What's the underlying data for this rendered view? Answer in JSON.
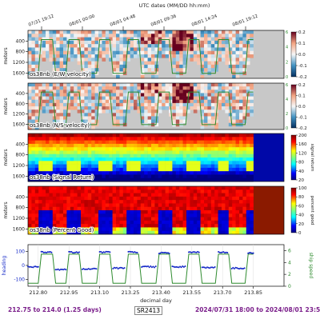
{
  "top_axis": {
    "label": "UTC dates (MM/DD hh:mm)",
    "ticks": [
      "07/31 19:12",
      "08/01 00:00",
      "08/01 04:48",
      "08/01 09:36",
      "08/01 14:24",
      "08/01 19:12"
    ]
  },
  "footer": {
    "left": "212.75 to 214.0 (1.25 days)",
    "center": "SR2413",
    "right": "2024/07/31 18:00 to 2024/08/01 23:55"
  },
  "colors": {
    "footer_text": "#7a1e8a",
    "speed_line": "#2e8b2e",
    "heading_points": "#1428c8",
    "nodata": "#c8c8c8"
  },
  "chart_data": [
    {
      "type": "heatmap",
      "panel_label": "os38nb (E/W velocity)",
      "ylabel": "meters",
      "yticks": [
        400,
        800,
        1200,
        1600
      ],
      "colorbar_ticks": [
        "0.2",
        "0.1",
        "0.0",
        "-0.1",
        "-0.2"
      ],
      "colorbar_range": [
        -0.2,
        0.2
      ],
      "colormap": "RdBu_r",
      "speed_axis_ticks": [
        "6",
        "4",
        "2",
        "0"
      ]
    },
    {
      "type": "heatmap",
      "panel_label": "os38nb (N/S velocity)",
      "ylabel": "meters",
      "yticks": [
        400,
        800,
        1200,
        1600
      ],
      "colorbar_ticks": [
        "0.2",
        "0.1",
        "0.0",
        "-0.1",
        "-0.2"
      ],
      "colorbar_range": [
        -0.2,
        0.2
      ],
      "colormap": "RdBu_r",
      "speed_axis_ticks": [
        "6",
        "4",
        "2",
        "0"
      ]
    },
    {
      "type": "heatmap",
      "panel_label": "os38nb (Signal Return)",
      "ylabel": "meters",
      "yticks": [
        400,
        800,
        1200,
        1600
      ],
      "colorbar_ticks": [
        "200",
        "160",
        "120",
        "80",
        "40",
        "20"
      ],
      "colorbar_label": "signal return",
      "colormap": "jet"
    },
    {
      "type": "heatmap",
      "panel_label": "os38nb (Percent Good)",
      "ylabel": "meters",
      "yticks": [
        400,
        800,
        1200,
        1600
      ],
      "colorbar_ticks": [
        "100",
        "80",
        "60",
        "40",
        "20",
        "0"
      ],
      "colorbar_label": "percent good",
      "colormap": "jet"
    },
    {
      "type": "line",
      "ylabel_left": "heading",
      "ylabel_right": "ship speed",
      "xlabel": "decimal day",
      "x_ticks": [
        212.8,
        212.95,
        213.1,
        213.25,
        213.4,
        213.55,
        213.7,
        213.85
      ],
      "heading_ticks": [
        100,
        0,
        -100
      ],
      "speed_ticks": [
        6,
        4,
        2,
        0
      ],
      "xlim": [
        212.75,
        214.0
      ],
      "series": [
        {
          "name": "heading",
          "x": [
            212.75,
            212.8,
            212.815,
            212.87,
            212.885,
            212.935,
            212.95,
            213.0,
            213.015,
            213.085,
            213.1,
            213.15,
            213.165,
            213.225,
            213.24,
            213.29,
            213.305,
            213.375,
            213.39,
            213.44,
            213.455,
            213.52,
            213.535,
            213.585,
            213.6,
            213.665,
            213.68,
            213.73,
            213.745,
            213.81,
            213.825,
            213.85
          ],
          "values": [
            -10,
            -10,
            95,
            95,
            -30,
            -30,
            95,
            95,
            -25,
            -25,
            95,
            95,
            -20,
            -20,
            95,
            95,
            -10,
            -10,
            90,
            90,
            -10,
            -10,
            95,
            95,
            -15,
            -15,
            95,
            95,
            -20,
            -20,
            90,
            90
          ]
        },
        {
          "name": "ship speed",
          "x": [
            212.75,
            212.8,
            212.815,
            212.87,
            212.885,
            212.935,
            212.95,
            213.0,
            213.015,
            213.085,
            213.1,
            213.15,
            213.165,
            213.225,
            213.24,
            213.29,
            213.305,
            213.375,
            213.39,
            213.44,
            213.455,
            213.52,
            213.535,
            213.585,
            213.6,
            213.665,
            213.68,
            213.73,
            213.745,
            213.81,
            213.825,
            213.85
          ],
          "values": [
            0.5,
            0.5,
            5.4,
            5.4,
            0.5,
            0.5,
            5.4,
            5.4,
            0.5,
            0.5,
            5.4,
            5.4,
            0.5,
            0.5,
            5.4,
            5.4,
            0.5,
            0.5,
            5.4,
            5.4,
            0.5,
            0.5,
            5.4,
            5.4,
            0.5,
            0.5,
            5.4,
            5.4,
            0.5,
            0.5,
            5.4,
            5.4
          ]
        }
      ]
    }
  ]
}
